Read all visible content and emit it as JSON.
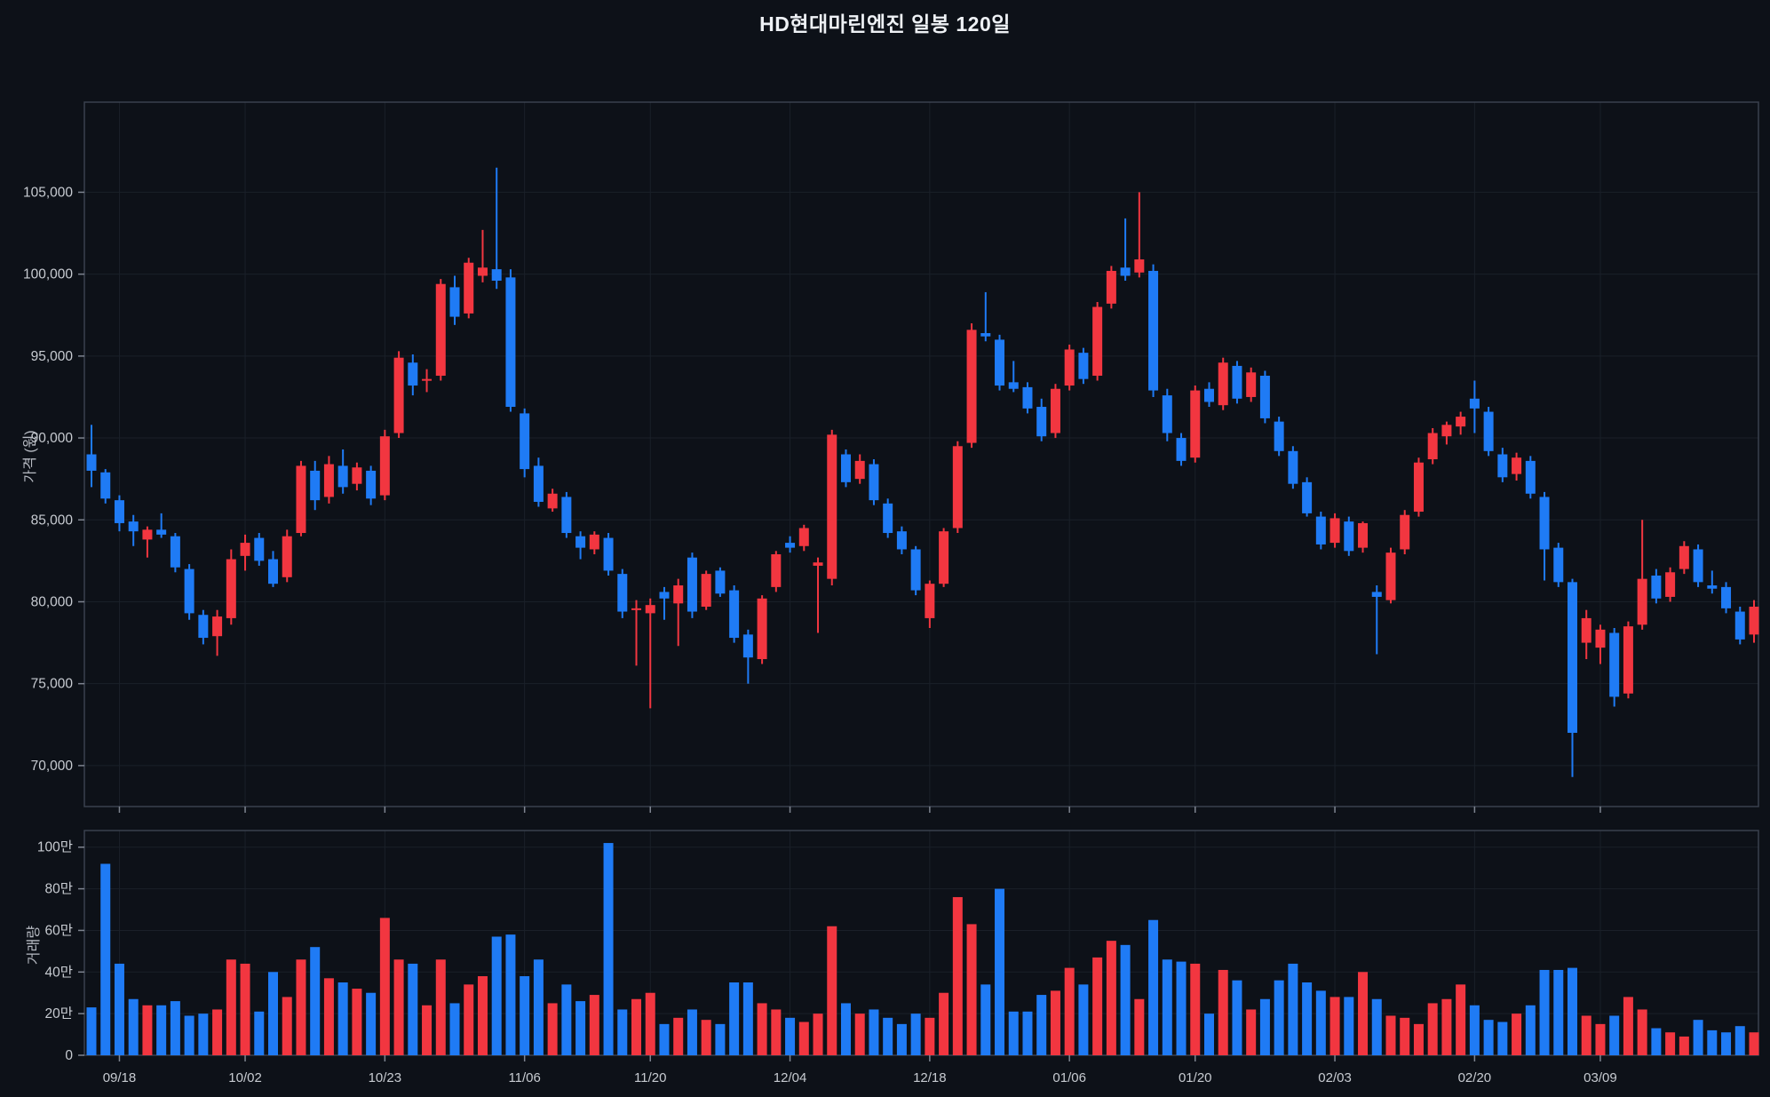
{
  "title": "HD현대마린엔진 일봉 120일",
  "price_axis_title": "가격 (원)",
  "volume_axis_title": "거래량",
  "colors": {
    "background": "#0d1118",
    "up": "#f23640",
    "down": "#1f7bf5",
    "grid": "#1a2029",
    "pane_border": "#3a414e",
    "tick_mark": "#7e8490",
    "tick_text": "#c7cbd1",
    "title_text": "#eef1f5"
  },
  "chart_data": {
    "type": "candlestick_with_volume",
    "title": "HD현대마린엔진 일봉 120일",
    "legend_position": "none",
    "grid": true,
    "price_axis": {
      "label": "가격 (원)",
      "range": [
        67500,
        110500
      ],
      "ticks": [
        {
          "value": 105000,
          "label": "105,000"
        },
        {
          "value": 100000,
          "label": "100,000"
        },
        {
          "value": 95000,
          "label": "95,000"
        },
        {
          "value": 90000,
          "label": "90,000"
        },
        {
          "value": 85000,
          "label": "85,000"
        },
        {
          "value": 80000,
          "label": "80,000"
        },
        {
          "value": 75000,
          "label": "75,000"
        },
        {
          "value": 70000,
          "label": "70,000"
        }
      ]
    },
    "volume_axis": {
      "label": "거래량",
      "range": [
        0,
        1080000
      ],
      "ticks": [
        {
          "value": 1000000,
          "label": "100만"
        },
        {
          "value": 800000,
          "label": "80만"
        },
        {
          "value": 600000,
          "label": "60만"
        },
        {
          "value": 400000,
          "label": "40만"
        },
        {
          "value": 200000,
          "label": "20만"
        },
        {
          "value": 0,
          "label": "0"
        }
      ]
    },
    "x_axis": {
      "tick_indices": [
        2,
        11,
        21,
        31,
        40,
        50,
        60,
        70,
        79,
        89,
        99,
        108
      ],
      "tick_labels": [
        "09/18",
        "10/02",
        "10/23",
        "11/06",
        "11/20",
        "12/04",
        "12/18",
        "01/06",
        "01/20",
        "02/03",
        "02/20",
        "03/09"
      ]
    },
    "columns": [
      "open",
      "high",
      "low",
      "close",
      "volume"
    ],
    "up_rule": "close >= open is red (up), close < open is blue (down)",
    "candles": [
      [
        89000,
        90800,
        87000,
        88000,
        230000
      ],
      [
        87900,
        88100,
        86000,
        86300,
        920000
      ],
      [
        86200,
        86500,
        84300,
        84800,
        440000
      ],
      [
        84900,
        85300,
        83400,
        84300,
        270000
      ],
      [
        83800,
        84600,
        82700,
        84400,
        240000
      ],
      [
        84400,
        85400,
        83900,
        84100,
        240000
      ],
      [
        84000,
        84200,
        81800,
        82100,
        260000
      ],
      [
        82000,
        82300,
        78900,
        79300,
        190000
      ],
      [
        79200,
        79500,
        77400,
        77800,
        200000
      ],
      [
        77900,
        79500,
        76700,
        79100,
        220000
      ],
      [
        79000,
        83200,
        78600,
        82600,
        460000
      ],
      [
        82800,
        84100,
        81900,
        83600,
        440000
      ],
      [
        83900,
        84200,
        82200,
        82500,
        210000
      ],
      [
        82600,
        83100,
        80900,
        81100,
        400000
      ],
      [
        81500,
        84400,
        81200,
        84000,
        280000
      ],
      [
        84200,
        88600,
        84000,
        88300,
        460000
      ],
      [
        88000,
        88600,
        85600,
        86200,
        520000
      ],
      [
        86400,
        88900,
        86000,
        88400,
        370000
      ],
      [
        88300,
        89300,
        86600,
        87000,
        350000
      ],
      [
        87200,
        88500,
        86800,
        88200,
        320000
      ],
      [
        88000,
        88300,
        85900,
        86300,
        300000
      ],
      [
        86500,
        90500,
        86200,
        90100,
        660000
      ],
      [
        90300,
        95300,
        90000,
        94900,
        460000
      ],
      [
        94600,
        95100,
        92600,
        93200,
        440000
      ],
      [
        93500,
        94200,
        92800,
        93600,
        240000
      ],
      [
        93800,
        99700,
        93500,
        99400,
        460000
      ],
      [
        99200,
        99900,
        96900,
        97400,
        250000
      ],
      [
        97600,
        101000,
        97300,
        100700,
        340000
      ],
      [
        99900,
        102700,
        99500,
        100400,
        380000
      ],
      [
        100300,
        106500,
        99100,
        99600,
        570000
      ],
      [
        99800,
        100300,
        91600,
        91900,
        580000
      ],
      [
        91500,
        91800,
        87600,
        88100,
        380000
      ],
      [
        88300,
        88800,
        85800,
        86100,
        460000
      ],
      [
        85700,
        86900,
        85500,
        86600,
        250000
      ],
      [
        86400,
        86700,
        83900,
        84200,
        340000
      ],
      [
        84000,
        84300,
        82600,
        83300,
        260000
      ],
      [
        83200,
        84300,
        82900,
        84100,
        290000
      ],
      [
        83900,
        84200,
        81600,
        81900,
        1020000
      ],
      [
        81700,
        82000,
        79000,
        79400,
        220000
      ],
      [
        79500,
        80100,
        76100,
        79600,
        270000
      ],
      [
        79300,
        80200,
        73500,
        79800,
        300000
      ],
      [
        80600,
        80900,
        78900,
        80200,
        150000
      ],
      [
        79900,
        81400,
        77300,
        81000,
        180000
      ],
      [
        82700,
        83000,
        79000,
        79400,
        220000
      ],
      [
        79700,
        81900,
        79500,
        81700,
        170000
      ],
      [
        81900,
        82100,
        80300,
        80500,
        150000
      ],
      [
        80700,
        81000,
        77500,
        77800,
        350000
      ],
      [
        78000,
        78300,
        75000,
        76600,
        350000
      ],
      [
        76500,
        80400,
        76200,
        80200,
        250000
      ],
      [
        80900,
        83100,
        80600,
        82900,
        220000
      ],
      [
        83600,
        84000,
        83000,
        83300,
        180000
      ],
      [
        83400,
        84700,
        83100,
        84500,
        160000
      ],
      [
        82200,
        82700,
        78100,
        82400,
        200000
      ],
      [
        81400,
        90500,
        81000,
        90200,
        620000
      ],
      [
        89000,
        89300,
        87000,
        87300,
        250000
      ],
      [
        87500,
        89000,
        87200,
        88600,
        200000
      ],
      [
        88400,
        88700,
        85900,
        86200,
        220000
      ],
      [
        86000,
        86300,
        83900,
        84200,
        180000
      ],
      [
        84300,
        84600,
        82900,
        83200,
        150000
      ],
      [
        83200,
        83400,
        80400,
        80700,
        200000
      ],
      [
        79000,
        81300,
        78400,
        81100,
        180000
      ],
      [
        81100,
        84500,
        80900,
        84300,
        300000
      ],
      [
        84500,
        89800,
        84200,
        89500,
        760000
      ],
      [
        89700,
        97000,
        89400,
        96600,
        630000
      ],
      [
        96400,
        98900,
        95900,
        96200,
        340000
      ],
      [
        96000,
        96300,
        92900,
        93200,
        800000
      ],
      [
        93400,
        94700,
        92800,
        93000,
        210000
      ],
      [
        93100,
        93400,
        91500,
        91800,
        210000
      ],
      [
        91900,
        92400,
        89800,
        90100,
        290000
      ],
      [
        90300,
        93300,
        90000,
        93000,
        310000
      ],
      [
        93200,
        95700,
        92900,
        95400,
        420000
      ],
      [
        95200,
        95500,
        93300,
        93600,
        340000
      ],
      [
        93800,
        98300,
        93500,
        98000,
        470000
      ],
      [
        98200,
        100500,
        97900,
        100200,
        550000
      ],
      [
        100400,
        103400,
        99600,
        99900,
        530000
      ],
      [
        100100,
        105000,
        99800,
        100900,
        270000
      ],
      [
        100200,
        100600,
        92500,
        92900,
        650000
      ],
      [
        92600,
        93000,
        89800,
        90300,
        460000
      ],
      [
        90000,
        90300,
        88300,
        88600,
        450000
      ],
      [
        88800,
        93200,
        88500,
        92900,
        440000
      ],
      [
        93000,
        93400,
        91900,
        92200,
        200000
      ],
      [
        92000,
        94900,
        91700,
        94600,
        410000
      ],
      [
        94400,
        94700,
        92100,
        92400,
        360000
      ],
      [
        92500,
        94300,
        92200,
        94000,
        220000
      ],
      [
        93800,
        94100,
        90900,
        91200,
        270000
      ],
      [
        91000,
        91300,
        88900,
        89200,
        360000
      ],
      [
        89200,
        89500,
        86900,
        87200,
        440000
      ],
      [
        87300,
        87600,
        85200,
        85400,
        350000
      ],
      [
        85200,
        85500,
        83200,
        83500,
        310000
      ],
      [
        83600,
        85400,
        83300,
        85100,
        280000
      ],
      [
        84900,
        85200,
        82800,
        83100,
        280000
      ],
      [
        83300,
        84900,
        83000,
        84800,
        400000
      ],
      [
        80600,
        81000,
        76800,
        80300,
        270000
      ],
      [
        80100,
        83300,
        79900,
        83000,
        190000
      ],
      [
        83200,
        85600,
        82900,
        85300,
        180000
      ],
      [
        85500,
        88800,
        85200,
        88500,
        150000
      ],
      [
        88700,
        90600,
        88400,
        90300,
        250000
      ],
      [
        90100,
        91000,
        89600,
        90800,
        270000
      ],
      [
        90700,
        91600,
        90200,
        91300,
        340000
      ],
      [
        92400,
        93500,
        90300,
        91800,
        240000
      ],
      [
        91600,
        91900,
        88900,
        89200,
        170000
      ],
      [
        89000,
        89400,
        87300,
        87600,
        160000
      ],
      [
        87800,
        89100,
        87400,
        88800,
        200000
      ],
      [
        88600,
        88900,
        86300,
        86600,
        240000
      ],
      [
        86400,
        86700,
        81300,
        83200,
        410000
      ],
      [
        83300,
        83600,
        80900,
        81200,
        410000
      ],
      [
        81200,
        81400,
        69300,
        72000,
        420000
      ],
      [
        77500,
        79500,
        76500,
        79000,
        190000
      ],
      [
        77200,
        78600,
        76200,
        78300,
        150000
      ],
      [
        78100,
        78400,
        73600,
        74200,
        190000
      ],
      [
        74400,
        78800,
        74100,
        78500,
        280000
      ],
      [
        78600,
        85000,
        78300,
        81400,
        220000
      ],
      [
        81600,
        82000,
        79900,
        80200,
        130000
      ],
      [
        80300,
        82100,
        80000,
        81800,
        110000
      ],
      [
        82000,
        83700,
        81700,
        83400,
        90000
      ],
      [
        83200,
        83500,
        80900,
        81200,
        170000
      ],
      [
        81000,
        81900,
        80500,
        80800,
        120000
      ],
      [
        80900,
        81200,
        79300,
        79600,
        110000
      ],
      [
        79400,
        79700,
        77400,
        77700,
        140000
      ],
      [
        78000,
        80100,
        77500,
        79700,
        110000
      ]
    ]
  }
}
